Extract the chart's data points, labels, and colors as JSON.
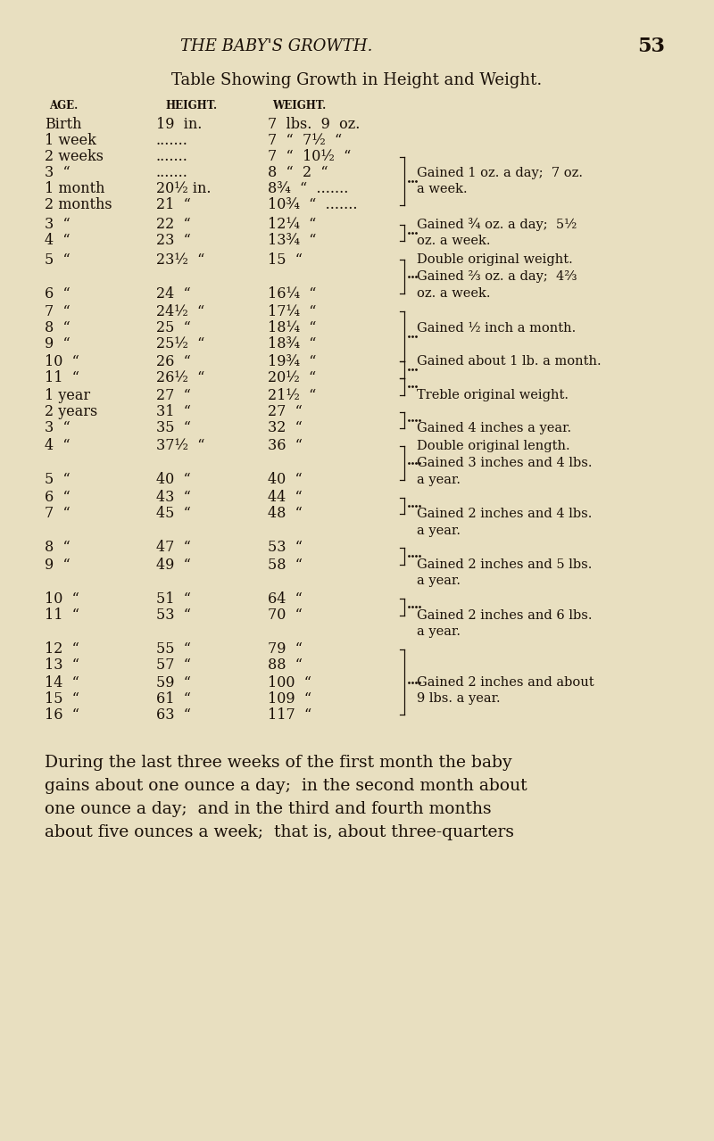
{
  "bg_color": "#e8dfc0",
  "text_color": "#1a1008",
  "page_title": "THE BABY'S GROWTH.",
  "page_number": "53",
  "table_title": "Table Showing Growth in Height and Weight.",
  "col_headers": [
    "AGE.",
    "HEIGHT.",
    "WEIGHT."
  ],
  "rows": [
    [
      "Birth",
      "19  in.",
      "7  lbs.  9  oz.",
      ""
    ],
    [
      "1 week",
      ".......",
      "7  “  7½  “",
      ""
    ],
    [
      "2 weeks",
      ".......",
      "7  “  10½  “",
      ""
    ],
    [
      "3  “",
      ".......",
      "8  “  2  “",
      "Gained 1 oz. a day;  7 oz."
    ],
    [
      "1 month",
      "20½ in.",
      "8¾  “  .......",
      "a week."
    ],
    [
      "2 months",
      "21  “",
      "10¾  “  .......",
      ""
    ],
    [
      "3  “",
      "22  “",
      "12¼  “",
      "Gained ¾ oz. a day;  5½"
    ],
    [
      "4  “",
      "23  “",
      "13¾  “",
      "oz. a week."
    ],
    [
      "5  “",
      "23½  “",
      "15  “",
      "Double original weight."
    ],
    [
      "",
      "",
      "",
      "Gained ⅔ oz. a day;  4⅔"
    ],
    [
      "6  “",
      "24  “",
      "16¼  “",
      "oz. a week."
    ],
    [
      "7  “",
      "24½  “",
      "17¼  “",
      ""
    ],
    [
      "8  “",
      "25  “",
      "18¼  “",
      "Gained ½ inch a month."
    ],
    [
      "9  “",
      "25½  “",
      "18¾  “",
      ""
    ],
    [
      "10  “",
      "26  “",
      "19¾  “",
      "Gained about 1 lb. a month."
    ],
    [
      "11  “",
      "26½  “",
      "20½  “",
      ""
    ],
    [
      "1 year",
      "27  “",
      "21½  “",
      "Treble original weight."
    ],
    [
      "2 years",
      "31  “",
      "27  “",
      ""
    ],
    [
      "3  “",
      "35  “",
      "32  “",
      "Gained 4 inches a year."
    ],
    [
      "4  “",
      "37½  “",
      "36  “",
      "Double original length."
    ],
    [
      "",
      "",
      "",
      "Gained 3 inches and 4 lbs."
    ],
    [
      "5  “",
      "40  “",
      "40  “",
      "a year."
    ],
    [
      "6  “",
      "43  “",
      "44  “",
      ""
    ],
    [
      "7  “",
      "45  “",
      "48  “",
      "Gained 2 inches and 4 lbs."
    ],
    [
      "",
      "",
      "",
      "a year."
    ],
    [
      "8  “",
      "47  “",
      "53  “",
      ""
    ],
    [
      "9  “",
      "49  “",
      "58  “",
      "Gained 2 inches and 5 lbs."
    ],
    [
      "",
      "",
      "",
      "a year."
    ],
    [
      "10  “",
      "51  “",
      "64  “",
      ""
    ],
    [
      "11  “",
      "53  “",
      "70  “",
      "Gained 2 inches and 6 lbs."
    ],
    [
      "",
      "",
      "",
      "a year."
    ],
    [
      "12  “",
      "55  “",
      "79  “",
      ""
    ],
    [
      "13  “",
      "57  “",
      "88  “",
      ""
    ],
    [
      "14  “",
      "59  “",
      "100  “",
      "Gained 2 inches and about"
    ],
    [
      "15  “",
      "61  “",
      "109  “",
      "9 lbs. a year."
    ],
    [
      "16  “",
      "63  “",
      "117  “",
      ""
    ]
  ],
  "footer_text": "During the last three weeks of the first month the baby gains about one ounce a day; in the second month about one ounce a day; and in the third and fourth months about five ounces a week; that is, about three-quarters"
}
